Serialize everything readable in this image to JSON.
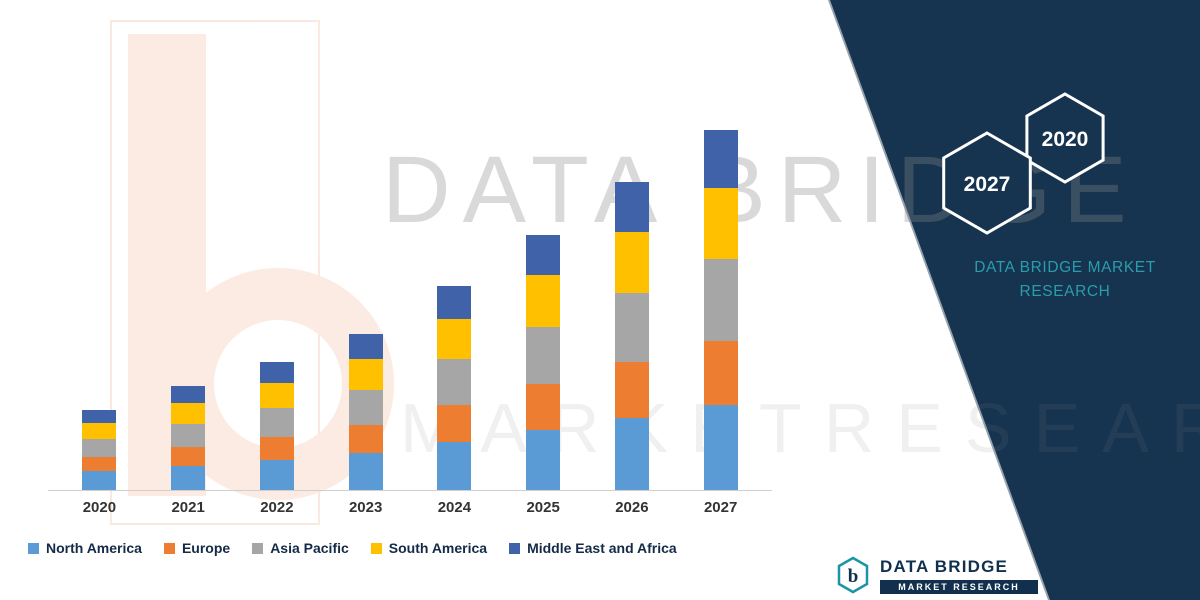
{
  "brand": {
    "panel_title_line1": "DATA BRIDGE MARKET",
    "panel_title_line2": "RESEARCH",
    "hexagon_year_left": "2027",
    "hexagon_year_right": "2020",
    "footer_logo_text": "DATA BRIDGE",
    "footer_logo_subtext": "MARKET RESEARCH",
    "footer_logo_letter": "b"
  },
  "watermarks": {
    "row1": "DATA BRIDGE",
    "row2": "MARKETRESEARCH"
  },
  "colors": {
    "panel_navy": "#16334f",
    "teal_accent": "#2a9dad",
    "logo_navy": "#12304e",
    "watermark_gray": "#8a8a8a",
    "logo_peach": "#f8dccb"
  },
  "chart_data": {
    "type": "bar",
    "stacked": true,
    "title": "",
    "xlabel": "",
    "ylabel": "",
    "grid": false,
    "legend_position": "bottom",
    "ylim": [
      0,
      9.5
    ],
    "categories": [
      "2020",
      "2021",
      "2022",
      "2023",
      "2024",
      "2025",
      "2026",
      "2027"
    ],
    "series": [
      {
        "name": "North America",
        "color": "#5b9bd5",
        "values": [
          0.47,
          0.61,
          0.75,
          0.92,
          1.2,
          1.5,
          1.81,
          2.12
        ]
      },
      {
        "name": "Europe",
        "color": "#ed7d31",
        "values": [
          0.36,
          0.47,
          0.58,
          0.7,
          0.92,
          1.15,
          1.39,
          1.62
        ]
      },
      {
        "name": "Asia Pacific",
        "color": "#a6a6a6",
        "values": [
          0.45,
          0.58,
          0.72,
          0.88,
          1.15,
          1.44,
          1.73,
          2.03
        ]
      },
      {
        "name": "South America",
        "color": "#ffc000",
        "values": [
          0.4,
          0.52,
          0.64,
          0.78,
          1.02,
          1.28,
          1.54,
          1.8
        ]
      },
      {
        "name": "Middle East and Africa",
        "color": "#3f62a8",
        "values": [
          0.32,
          0.42,
          0.51,
          0.62,
          0.81,
          1.02,
          1.23,
          1.44
        ]
      }
    ],
    "totals": [
      2.0,
      2.6,
      3.2,
      3.9,
      5.1,
      6.4,
      7.7,
      9.0
    ]
  }
}
